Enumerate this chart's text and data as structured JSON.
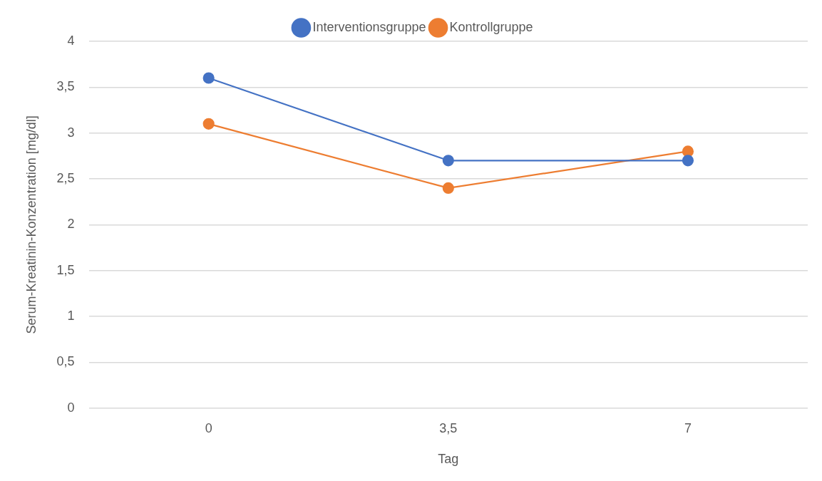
{
  "chart_data": {
    "type": "line",
    "xlabel": "Tag",
    "ylabel": "Serum-Kreatinin-Konzentration [mg/dl]",
    "categories": [
      "0",
      "3,5",
      "7"
    ],
    "series": [
      {
        "name": "Interventionsgruppe",
        "color": "#4472c4",
        "values": [
          3.6,
          2.7,
          2.7
        ]
      },
      {
        "name": "Kontrollgruppe",
        "color": "#ed7d31",
        "values": [
          3.1,
          2.4,
          2.8
        ]
      }
    ],
    "ylim": [
      0,
      4
    ],
    "yticks": [
      0,
      {
        "value": 0.5,
        "label": "0,5"
      },
      1,
      {
        "value": 1.5,
        "label": "1,5"
      },
      2,
      {
        "value": 2.5,
        "label": "2,5"
      },
      3,
      {
        "value": 3.5,
        "label": "3,5"
      },
      4
    ],
    "grid": "y",
    "legend": "top",
    "marker": "circle",
    "line_style": "solid"
  }
}
